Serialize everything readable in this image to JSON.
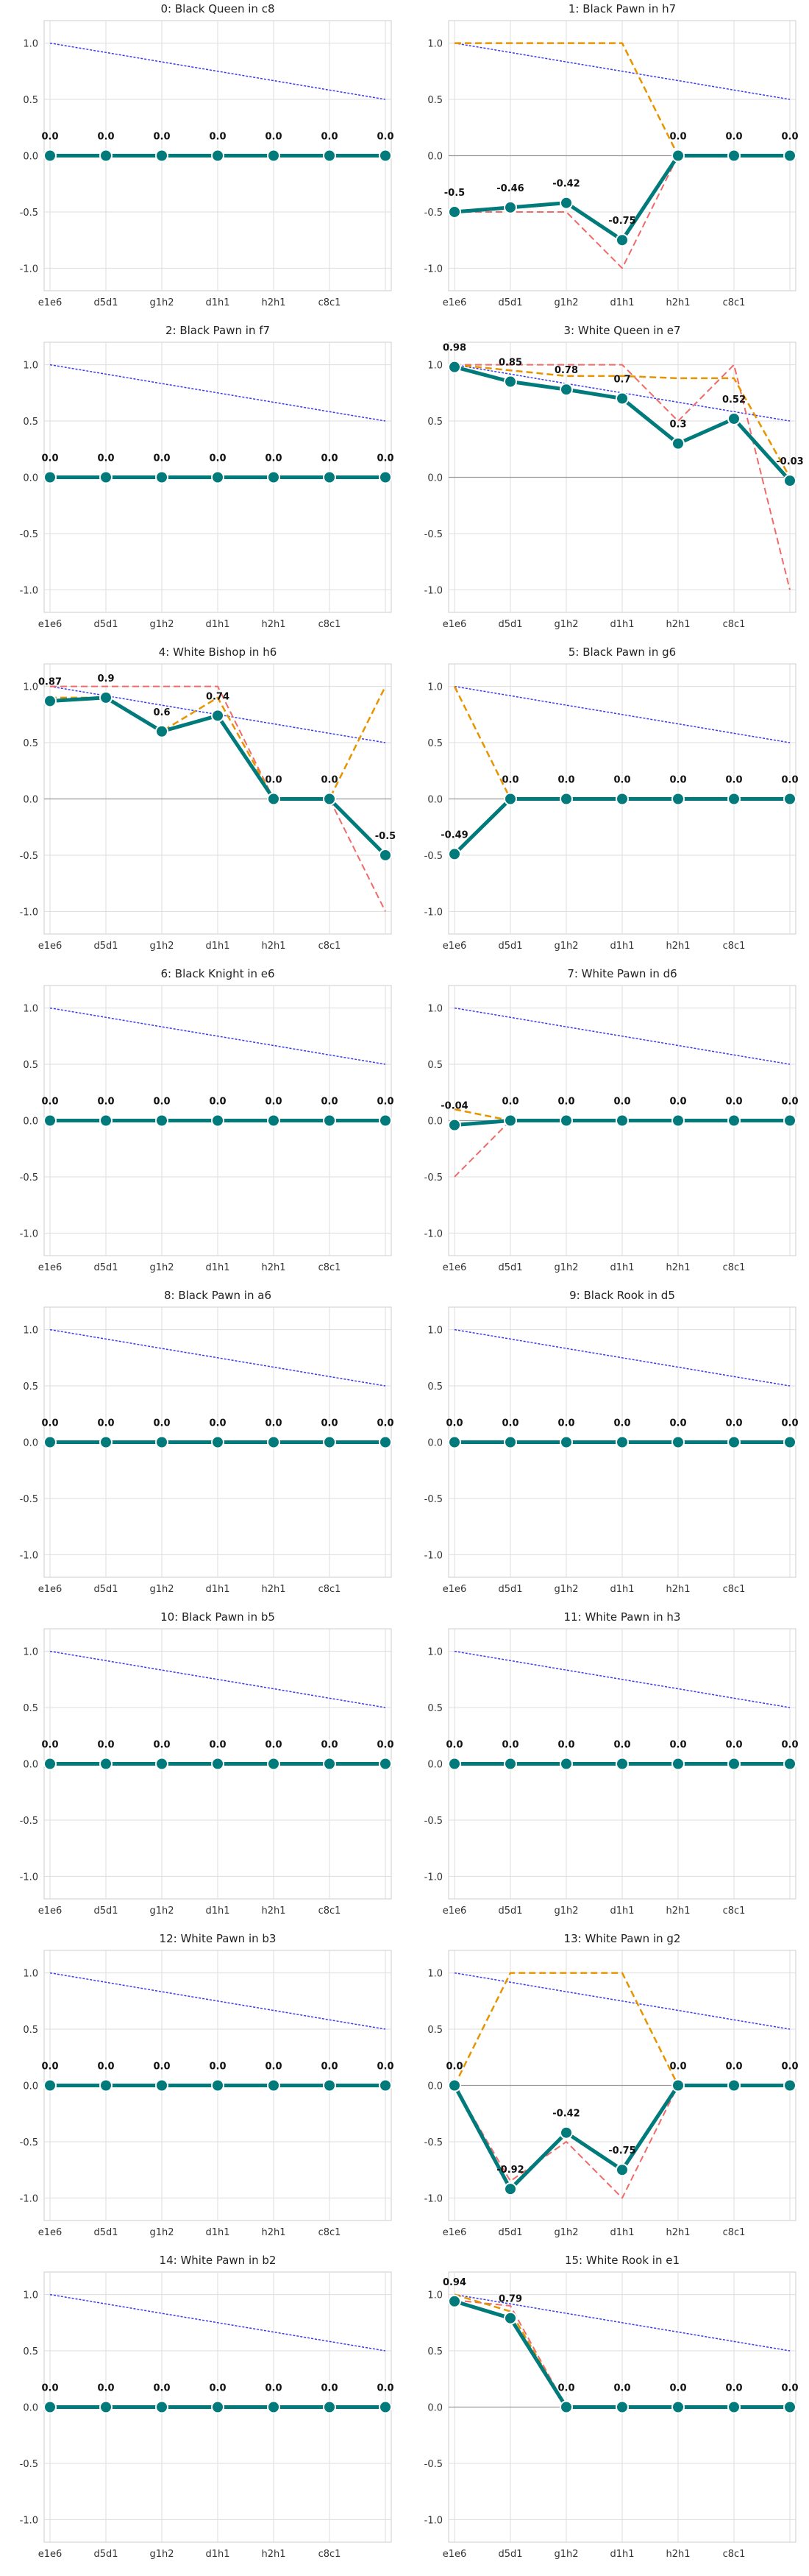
{
  "colors": {
    "main_line": "#007a7a",
    "reference_line": "#3a3af0",
    "orange_dashed": "#e69500",
    "red_dashed": "#f06a6a",
    "grid": "#dddddd",
    "zero_line": "#999999"
  },
  "chart_data": [
    {
      "type": "line",
      "title": "0: Black Queen in c8",
      "categories": [
        "e1e6",
        "d5d1",
        "g1h2",
        "d1h1",
        "h2h1",
        "c8c1",
        ""
      ],
      "ylim": [
        -1.2,
        1.2
      ],
      "yticks": [
        -1.0,
        -0.5,
        0.0,
        0.5,
        1.0
      ],
      "grid": true,
      "series": [
        {
          "values": [
            0,
            0,
            0,
            0,
            0,
            0,
            0
          ]
        },
        {
          "values": [
            1.0,
            0.917,
            0.833,
            0.75,
            0.667,
            0.583,
            0.5
          ]
        },
        {
          "values": null
        },
        {
          "values": null
        }
      ],
      "data_labels": [
        "0.0",
        "0.0",
        "0.0",
        "0.0",
        "0.0",
        "0.0",
        "0.0"
      ]
    },
    {
      "type": "line",
      "title": "1: Black Pawn in h7",
      "categories": [
        "e1e6",
        "d5d1",
        "g1h2",
        "d1h1",
        "h2h1",
        "c8c1",
        ""
      ],
      "ylim": [
        -1.2,
        1.2
      ],
      "yticks": [
        -1.0,
        -0.5,
        0.0,
        0.5,
        1.0
      ],
      "grid": true,
      "series": [
        {
          "values": [
            -0.5,
            -0.46,
            -0.42,
            -0.75,
            0,
            0,
            0
          ]
        },
        {
          "values": [
            1.0,
            0.917,
            0.833,
            0.75,
            0.667,
            0.583,
            0.5
          ]
        },
        {
          "values": [
            1.0,
            1.0,
            1.0,
            1.0,
            0,
            0,
            0
          ]
        },
        {
          "values": [
            -0.5,
            -0.5,
            -0.5,
            -1.0,
            0,
            0,
            0
          ]
        }
      ],
      "data_labels": [
        "-0.5",
        "-0.46",
        "-0.42",
        "-0.75",
        "0.0",
        "0.0",
        "0.0"
      ]
    },
    {
      "type": "line",
      "title": "2: Black Pawn in f7",
      "categories": [
        "e1e6",
        "d5d1",
        "g1h2",
        "d1h1",
        "h2h1",
        "c8c1",
        ""
      ],
      "ylim": [
        -1.2,
        1.2
      ],
      "yticks": [
        -1.0,
        -0.5,
        0.0,
        0.5,
        1.0
      ],
      "grid": true,
      "series": [
        {
          "values": [
            0,
            0,
            0,
            0,
            0,
            0,
            0
          ]
        },
        {
          "values": [
            1.0,
            0.917,
            0.833,
            0.75,
            0.667,
            0.583,
            0.5
          ]
        },
        {
          "values": null
        },
        {
          "values": null
        }
      ],
      "data_labels": [
        "0.0",
        "0.0",
        "0.0",
        "0.0",
        "0.0",
        "0.0",
        "0.0"
      ]
    },
    {
      "type": "line",
      "title": "3: White Queen in e7",
      "categories": [
        "e1e6",
        "d5d1",
        "g1h2",
        "d1h1",
        "h2h1",
        "c8c1",
        ""
      ],
      "ylim": [
        -1.2,
        1.2
      ],
      "yticks": [
        -1.0,
        -0.5,
        0.0,
        0.5,
        1.0
      ],
      "grid": true,
      "series": [
        {
          "values": [
            0.98,
            0.85,
            0.78,
            0.7,
            0.3,
            0.52,
            -0.03
          ]
        },
        {
          "values": [
            1.0,
            0.917,
            0.833,
            0.75,
            0.667,
            0.583,
            0.5
          ]
        },
        {
          "values": [
            1.0,
            0.95,
            0.9,
            0.9,
            0.88,
            0.88,
            0.0
          ]
        },
        {
          "values": [
            1.0,
            1.0,
            1.0,
            1.0,
            0.5,
            1.0,
            -1.0
          ]
        }
      ],
      "data_labels": [
        "0.98",
        "0.85",
        "0.78",
        "0.7",
        "0.3",
        "0.52",
        "-0.03"
      ]
    },
    {
      "type": "line",
      "title": "4: White Bishop in h6",
      "categories": [
        "e1e6",
        "d5d1",
        "g1h2",
        "d1h1",
        "h2h1",
        "c8c1",
        ""
      ],
      "ylim": [
        -1.2,
        1.2
      ],
      "yticks": [
        -1.0,
        -0.5,
        0.0,
        0.5,
        1.0
      ],
      "grid": true,
      "series": [
        {
          "values": [
            0.87,
            0.9,
            0.6,
            0.74,
            0,
            0,
            -0.5
          ]
        },
        {
          "values": [
            1.0,
            0.917,
            0.833,
            0.75,
            0.667,
            0.583,
            0.5
          ]
        },
        {
          "values": [
            0.9,
            0.9,
            0.6,
            0.9,
            0,
            0,
            1.0
          ]
        },
        {
          "values": [
            1.0,
            1.0,
            1.0,
            1.0,
            0,
            0,
            -1.0
          ]
        }
      ],
      "data_labels": [
        "0.87",
        "0.9",
        "0.6",
        "0.74",
        "0.0",
        "0.0",
        "-0.5"
      ]
    },
    {
      "type": "line",
      "title": "5: Black Pawn in g6",
      "categories": [
        "e1e6",
        "d5d1",
        "g1h2",
        "d1h1",
        "h2h1",
        "c8c1",
        ""
      ],
      "ylim": [
        -1.2,
        1.2
      ],
      "yticks": [
        -1.0,
        -0.5,
        0.0,
        0.5,
        1.0
      ],
      "grid": true,
      "series": [
        {
          "values": [
            -0.49,
            0,
            0,
            0,
            0,
            0,
            0
          ]
        },
        {
          "values": [
            1.0,
            0.917,
            0.833,
            0.75,
            0.667,
            0.583,
            0.5
          ]
        },
        {
          "values": [
            1.0,
            0,
            0,
            0,
            0,
            0,
            0
          ]
        },
        {
          "values": null
        }
      ],
      "data_labels": [
        "-0.49",
        "0.0",
        "0.0",
        "0.0",
        "0.0",
        "0.0",
        "0.0"
      ]
    },
    {
      "type": "line",
      "title": "6: Black Knight in e6",
      "categories": [
        "e1e6",
        "d5d1",
        "g1h2",
        "d1h1",
        "h2h1",
        "c8c1",
        ""
      ],
      "ylim": [
        -1.2,
        1.2
      ],
      "yticks": [
        -1.0,
        -0.5,
        0.0,
        0.5,
        1.0
      ],
      "grid": true,
      "series": [
        {
          "values": [
            0,
            0,
            0,
            0,
            0,
            0,
            0
          ]
        },
        {
          "values": [
            1.0,
            0.917,
            0.833,
            0.75,
            0.667,
            0.583,
            0.5
          ]
        },
        {
          "values": null
        },
        {
          "values": null
        }
      ],
      "data_labels": [
        "0.0",
        "0.0",
        "0.0",
        "0.0",
        "0.0",
        "0.0",
        "0.0"
      ]
    },
    {
      "type": "line",
      "title": "7: White Pawn in d6",
      "categories": [
        "e1e6",
        "d5d1",
        "g1h2",
        "d1h1",
        "h2h1",
        "c8c1",
        ""
      ],
      "ylim": [
        -1.2,
        1.2
      ],
      "yticks": [
        -1.0,
        -0.5,
        0.0,
        0.5,
        1.0
      ],
      "grid": true,
      "series": [
        {
          "values": [
            -0.04,
            0,
            0,
            0,
            0,
            0,
            0
          ]
        },
        {
          "values": [
            1.0,
            0.917,
            0.833,
            0.75,
            0.667,
            0.583,
            0.5
          ]
        },
        {
          "values": [
            0.1,
            0,
            0,
            0,
            0,
            0,
            0
          ]
        },
        {
          "values": [
            -0.5,
            0,
            0,
            0,
            0,
            0,
            0
          ]
        }
      ],
      "data_labels": [
        "-0.04",
        "0.0",
        "0.0",
        "0.0",
        "0.0",
        "0.0",
        "0.0"
      ]
    },
    {
      "type": "line",
      "title": "8: Black Pawn in a6",
      "categories": [
        "e1e6",
        "d5d1",
        "g1h2",
        "d1h1",
        "h2h1",
        "c8c1",
        ""
      ],
      "ylim": [
        -1.2,
        1.2
      ],
      "yticks": [
        -1.0,
        -0.5,
        0.0,
        0.5,
        1.0
      ],
      "grid": true,
      "series": [
        {
          "values": [
            0,
            0,
            0,
            0,
            0,
            0,
            0
          ]
        },
        {
          "values": [
            1.0,
            0.917,
            0.833,
            0.75,
            0.667,
            0.583,
            0.5
          ]
        },
        {
          "values": null
        },
        {
          "values": null
        }
      ],
      "data_labels": [
        "0.0",
        "0.0",
        "0.0",
        "0.0",
        "0.0",
        "0.0",
        "0.0"
      ]
    },
    {
      "type": "line",
      "title": "9: Black Rook in d5",
      "categories": [
        "e1e6",
        "d5d1",
        "g1h2",
        "d1h1",
        "h2h1",
        "c8c1",
        ""
      ],
      "ylim": [
        -1.2,
        1.2
      ],
      "yticks": [
        -1.0,
        -0.5,
        0.0,
        0.5,
        1.0
      ],
      "grid": true,
      "series": [
        {
          "values": [
            0,
            0,
            0,
            0,
            0,
            0,
            0
          ]
        },
        {
          "values": [
            1.0,
            0.917,
            0.833,
            0.75,
            0.667,
            0.583,
            0.5
          ]
        },
        {
          "values": null
        },
        {
          "values": null
        }
      ],
      "data_labels": [
        "0.0",
        "0.0",
        "0.0",
        "0.0",
        "0.0",
        "0.0",
        "0.0"
      ]
    },
    {
      "type": "line",
      "title": "10: Black Pawn in b5",
      "categories": [
        "e1e6",
        "d5d1",
        "g1h2",
        "d1h1",
        "h2h1",
        "c8c1",
        ""
      ],
      "ylim": [
        -1.2,
        1.2
      ],
      "yticks": [
        -1.0,
        -0.5,
        0.0,
        0.5,
        1.0
      ],
      "grid": true,
      "series": [
        {
          "values": [
            0,
            0,
            0,
            0,
            0,
            0,
            0
          ]
        },
        {
          "values": [
            1.0,
            0.917,
            0.833,
            0.75,
            0.667,
            0.583,
            0.5
          ]
        },
        {
          "values": null
        },
        {
          "values": null
        }
      ],
      "data_labels": [
        "0.0",
        "0.0",
        "0.0",
        "0.0",
        "0.0",
        "0.0",
        "0.0"
      ]
    },
    {
      "type": "line",
      "title": "11: White Pawn in h3",
      "categories": [
        "e1e6",
        "d5d1",
        "g1h2",
        "d1h1",
        "h2h1",
        "c8c1",
        ""
      ],
      "ylim": [
        -1.2,
        1.2
      ],
      "yticks": [
        -1.0,
        -0.5,
        0.0,
        0.5,
        1.0
      ],
      "grid": true,
      "series": [
        {
          "values": [
            0,
            0,
            0,
            0,
            0,
            0,
            0
          ]
        },
        {
          "values": [
            1.0,
            0.917,
            0.833,
            0.75,
            0.667,
            0.583,
            0.5
          ]
        },
        {
          "values": null
        },
        {
          "values": null
        }
      ],
      "data_labels": [
        "0.0",
        "0.0",
        "0.0",
        "0.0",
        "0.0",
        "0.0",
        "0.0"
      ]
    },
    {
      "type": "line",
      "title": "12: White Pawn in b3",
      "categories": [
        "e1e6",
        "d5d1",
        "g1h2",
        "d1h1",
        "h2h1",
        "c8c1",
        ""
      ],
      "ylim": [
        -1.2,
        1.2
      ],
      "yticks": [
        -1.0,
        -0.5,
        0.0,
        0.5,
        1.0
      ],
      "grid": true,
      "series": [
        {
          "values": [
            0,
            0,
            0,
            0,
            0,
            0,
            0
          ]
        },
        {
          "values": [
            1.0,
            0.917,
            0.833,
            0.75,
            0.667,
            0.583,
            0.5
          ]
        },
        {
          "values": null
        },
        {
          "values": null
        }
      ],
      "data_labels": [
        "0.0",
        "0.0",
        "0.0",
        "0.0",
        "0.0",
        "0.0",
        "0.0"
      ]
    },
    {
      "type": "line",
      "title": "13: White Pawn in g2",
      "categories": [
        "e1e6",
        "d5d1",
        "g1h2",
        "d1h1",
        "h2h1",
        "c8c1",
        ""
      ],
      "ylim": [
        -1.2,
        1.2
      ],
      "yticks": [
        -1.0,
        -0.5,
        0.0,
        0.5,
        1.0
      ],
      "grid": true,
      "series": [
        {
          "values": [
            0,
            -0.92,
            -0.42,
            -0.75,
            0,
            0,
            0
          ]
        },
        {
          "values": [
            1.0,
            0.917,
            0.833,
            0.75,
            0.667,
            0.583,
            0.5
          ]
        },
        {
          "values": [
            0,
            1.0,
            1.0,
            1.0,
            0,
            0,
            0
          ]
        },
        {
          "values": [
            0,
            -0.85,
            -0.5,
            -1.0,
            0,
            0,
            0
          ]
        }
      ],
      "data_labels": [
        "0.0",
        "-0.92",
        "-0.42",
        "-0.75",
        "0.0",
        "0.0",
        "0.0"
      ]
    },
    {
      "type": "line",
      "title": "14: White Pawn in b2",
      "categories": [
        "e1e6",
        "d5d1",
        "g1h2",
        "d1h1",
        "h2h1",
        "c8c1",
        ""
      ],
      "ylim": [
        -1.2,
        1.2
      ],
      "yticks": [
        -1.0,
        -0.5,
        0.0,
        0.5,
        1.0
      ],
      "grid": true,
      "series": [
        {
          "values": [
            0,
            0,
            0,
            0,
            0,
            0,
            0
          ]
        },
        {
          "values": [
            1.0,
            0.917,
            0.833,
            0.75,
            0.667,
            0.583,
            0.5
          ]
        },
        {
          "values": null
        },
        {
          "values": null
        }
      ],
      "data_labels": [
        "0.0",
        "0.0",
        "0.0",
        "0.0",
        "0.0",
        "0.0",
        "0.0"
      ]
    },
    {
      "type": "line",
      "title": "15: White Rook in e1",
      "categories": [
        "e1e6",
        "d5d1",
        "g1h2",
        "d1h1",
        "h2h1",
        "c8c1",
        ""
      ],
      "ylim": [
        -1.2,
        1.2
      ],
      "yticks": [
        -1.0,
        -0.5,
        0.0,
        0.5,
        1.0
      ],
      "grid": true,
      "series": [
        {
          "values": [
            0.94,
            0.79,
            0,
            0,
            0,
            0,
            0
          ]
        },
        {
          "values": [
            1.0,
            0.917,
            0.833,
            0.75,
            0.667,
            0.583,
            0.5
          ]
        },
        {
          "values": [
            1.0,
            0.85,
            0,
            0,
            0,
            0,
            0
          ]
        },
        {
          "values": [
            0.95,
            0.9,
            0,
            0,
            0,
            0,
            0
          ]
        }
      ],
      "data_labels": [
        "0.94",
        "0.79",
        "0.0",
        "0.0",
        "0.0",
        "0.0",
        "0.0"
      ]
    }
  ]
}
